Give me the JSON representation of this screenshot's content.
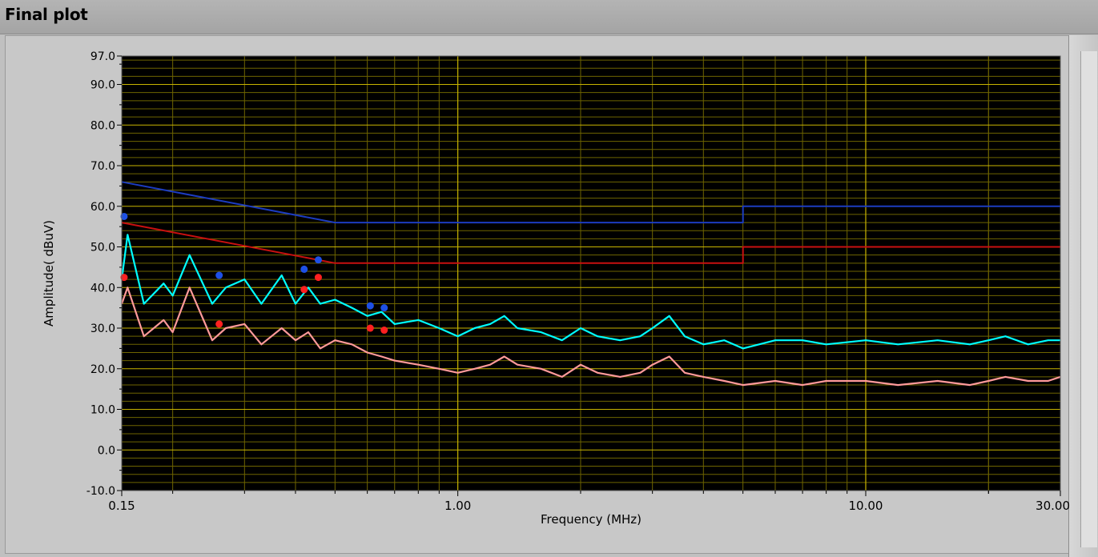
{
  "window": {
    "title": "Final plot"
  },
  "chart_data": {
    "type": "line",
    "title": "",
    "xlabel": "Frequency (MHz)",
    "ylabel": "Amplitude( dBuV)",
    "xscale": "log",
    "xlim": [
      0.15,
      30.0
    ],
    "ylim": [
      -10.0,
      97.0
    ],
    "x_tick_labels": [
      "0.15",
      "1.00",
      "10.00",
      "30.00"
    ],
    "x_tick_values": [
      0.15,
      1.0,
      10.0,
      30.0
    ],
    "y_tick_labels": [
      "97.0",
      "90.0",
      "80.0",
      "70.0",
      "60.0",
      "50.0",
      "40.0",
      "30.0",
      "20.0",
      "10.0",
      "0.0",
      "-10.0"
    ],
    "y_tick_values": [
      97,
      90,
      80,
      70,
      60,
      50,
      40,
      30,
      20,
      10,
      0,
      -10
    ],
    "grid": true,
    "legend": "none",
    "colors": {
      "plot_bg": "#000000",
      "grid_major": "#c8b400",
      "grid_minor": "#6e6400",
      "qp_limit": "#1c3cc0",
      "avg_limit": "#c81010",
      "qp_trace": "#00ffff",
      "avg_trace": "#ff9a9a",
      "qp_marker": "#1e50e6",
      "avg_marker": "#ff2020"
    },
    "series": [
      {
        "role": "qp_limit",
        "x": [
          0.15,
          0.5,
          0.5,
          5.0,
          5.0,
          30.0
        ],
        "y": [
          66.0,
          56.0,
          56.0,
          56.0,
          60.0,
          60.0
        ]
      },
      {
        "role": "avg_limit",
        "x": [
          0.15,
          0.5,
          0.5,
          5.0,
          5.0,
          30.0
        ],
        "y": [
          56.0,
          46.0,
          46.0,
          46.0,
          50.0,
          50.0
        ]
      },
      {
        "role": "qp_trace",
        "x": [
          0.15,
          0.155,
          0.17,
          0.19,
          0.2,
          0.22,
          0.25,
          0.27,
          0.3,
          0.33,
          0.37,
          0.4,
          0.43,
          0.46,
          0.5,
          0.55,
          0.6,
          0.65,
          0.7,
          0.8,
          0.9,
          1.0,
          1.1,
          1.2,
          1.3,
          1.4,
          1.6,
          1.8,
          2.0,
          2.2,
          2.5,
          2.8,
          3.0,
          3.3,
          3.6,
          4.0,
          4.5,
          5.0,
          6.0,
          7.0,
          8.0,
          10.0,
          12.0,
          15.0,
          18.0,
          20.0,
          22.0,
          25.0,
          28.0,
          30.0
        ],
        "y": [
          42,
          53,
          36,
          41,
          38,
          48,
          36,
          40,
          42,
          36,
          43,
          36,
          40,
          36,
          37,
          35,
          33,
          34,
          31,
          32,
          30,
          28,
          30,
          31,
          33,
          30,
          29,
          27,
          30,
          28,
          27,
          28,
          30,
          33,
          28,
          26,
          27,
          25,
          27,
          27,
          26,
          27,
          26,
          27,
          26,
          27,
          28,
          26,
          27,
          27
        ]
      },
      {
        "role": "avg_trace",
        "x": [
          0.15,
          0.155,
          0.17,
          0.19,
          0.2,
          0.22,
          0.25,
          0.27,
          0.3,
          0.33,
          0.37,
          0.4,
          0.43,
          0.46,
          0.5,
          0.55,
          0.6,
          0.65,
          0.7,
          0.8,
          0.9,
          1.0,
          1.1,
          1.2,
          1.3,
          1.4,
          1.6,
          1.8,
          2.0,
          2.2,
          2.5,
          2.8,
          3.0,
          3.3,
          3.6,
          4.0,
          4.5,
          5.0,
          6.0,
          7.0,
          8.0,
          10.0,
          12.0,
          15.0,
          18.0,
          20.0,
          22.0,
          25.0,
          28.0,
          30.0
        ],
        "y": [
          36,
          40,
          28,
          32,
          29,
          40,
          27,
          30,
          31,
          26,
          30,
          27,
          29,
          25,
          27,
          26,
          24,
          23,
          22,
          21,
          20,
          19,
          20,
          21,
          23,
          21,
          20,
          18,
          21,
          19,
          18,
          19,
          21,
          23,
          19,
          18,
          17,
          16,
          17,
          16,
          17,
          17,
          16,
          17,
          16,
          17,
          18,
          17,
          17,
          18
        ]
      },
      {
        "role": "qp_marker",
        "x": [
          0.152,
          0.26,
          0.42,
          0.455,
          0.61,
          0.66
        ],
        "y": [
          57.5,
          43.0,
          44.5,
          46.8,
          35.5,
          35.0
        ]
      },
      {
        "role": "avg_marker",
        "x": [
          0.152,
          0.26,
          0.42,
          0.455,
          0.61,
          0.66
        ],
        "y": [
          42.5,
          31.0,
          39.5,
          42.5,
          30.0,
          29.5
        ]
      }
    ]
  }
}
